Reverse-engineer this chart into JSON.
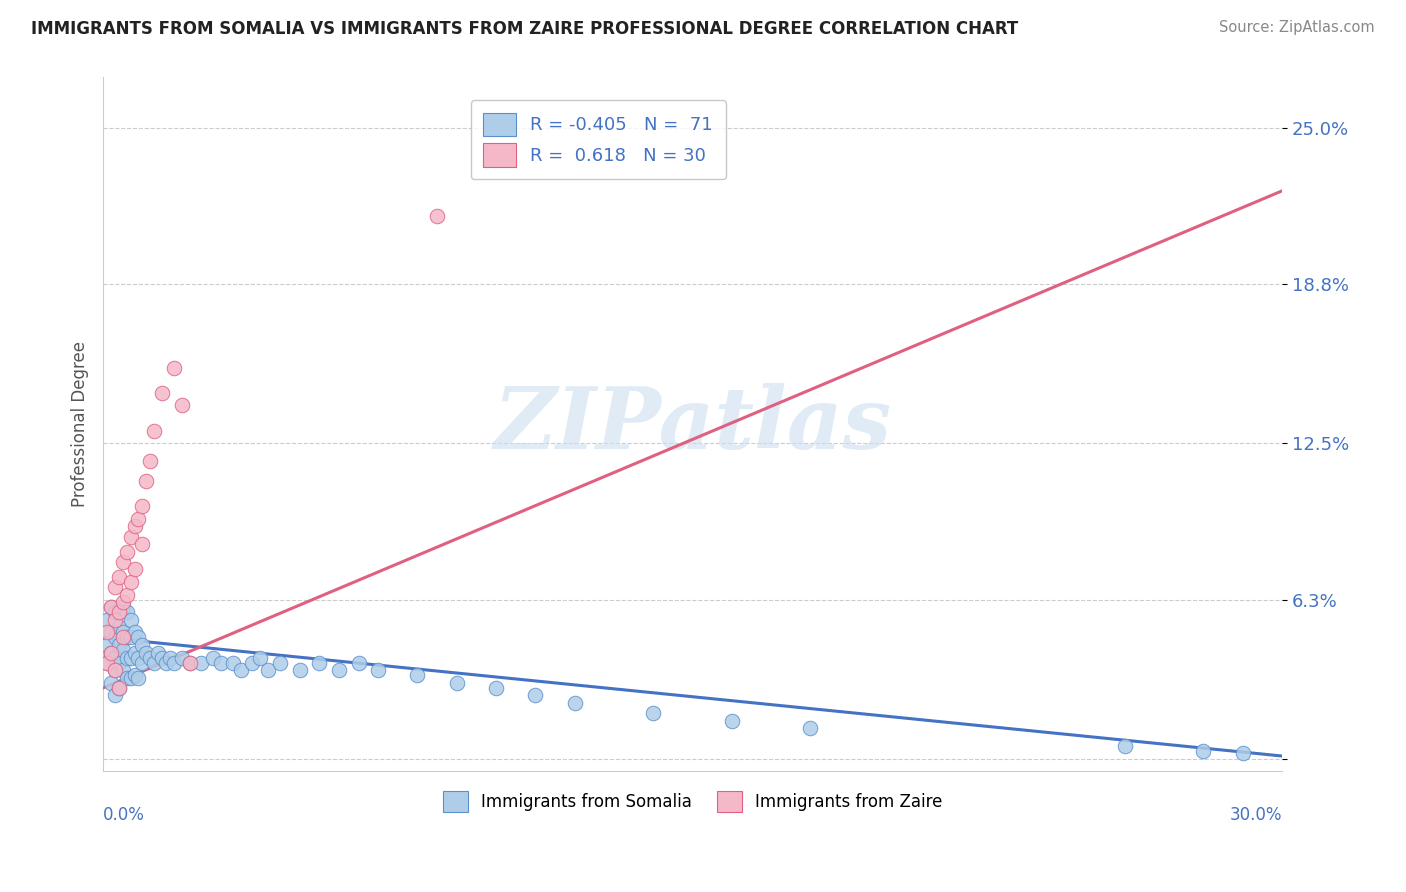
{
  "title": "IMMIGRANTS FROM SOMALIA VS IMMIGRANTS FROM ZAIRE PROFESSIONAL DEGREE CORRELATION CHART",
  "source": "Source: ZipAtlas.com",
  "ylabel": "Professional Degree",
  "watermark": "ZIPatlas",
  "xlim": [
    0.0,
    0.3
  ],
  "ylim": [
    -0.005,
    0.27
  ],
  "ytick_vals": [
    0.0,
    0.063,
    0.125,
    0.188,
    0.25
  ],
  "ytick_labels": [
    "",
    "6.3%",
    "12.5%",
    "18.8%",
    "25.0%"
  ],
  "somalia_color": "#aecde8",
  "somalia_edge": "#5b8fcc",
  "zaire_color": "#f5b8c8",
  "zaire_edge": "#e06080",
  "somalia_line_color": "#4472c4",
  "zaire_line_color": "#e06080",
  "somalia_trendline": [
    0.0,
    0.048,
    0.3,
    0.001
  ],
  "zaire_trendline": [
    0.0,
    0.028,
    0.3,
    0.225
  ],
  "somalia_x": [
    0.001,
    0.001,
    0.001,
    0.002,
    0.002,
    0.002,
    0.002,
    0.003,
    0.003,
    0.003,
    0.003,
    0.003,
    0.004,
    0.004,
    0.004,
    0.004,
    0.005,
    0.005,
    0.005,
    0.005,
    0.006,
    0.006,
    0.006,
    0.006,
    0.007,
    0.007,
    0.007,
    0.007,
    0.008,
    0.008,
    0.008,
    0.009,
    0.009,
    0.009,
    0.01,
    0.01,
    0.011,
    0.012,
    0.013,
    0.014,
    0.015,
    0.016,
    0.017,
    0.018,
    0.02,
    0.022,
    0.025,
    0.028,
    0.03,
    0.033,
    0.035,
    0.038,
    0.04,
    0.042,
    0.045,
    0.05,
    0.055,
    0.06,
    0.065,
    0.07,
    0.08,
    0.09,
    0.1,
    0.11,
    0.12,
    0.14,
    0.16,
    0.18,
    0.26,
    0.28,
    0.29
  ],
  "somalia_y": [
    0.055,
    0.045,
    0.038,
    0.06,
    0.05,
    0.042,
    0.03,
    0.058,
    0.048,
    0.04,
    0.035,
    0.025,
    0.052,
    0.045,
    0.038,
    0.028,
    0.06,
    0.05,
    0.043,
    0.035,
    0.058,
    0.048,
    0.04,
    0.032,
    0.055,
    0.048,
    0.04,
    0.032,
    0.05,
    0.042,
    0.033,
    0.048,
    0.04,
    0.032,
    0.045,
    0.038,
    0.042,
    0.04,
    0.038,
    0.042,
    0.04,
    0.038,
    0.04,
    0.038,
    0.04,
    0.038,
    0.038,
    0.04,
    0.038,
    0.038,
    0.035,
    0.038,
    0.04,
    0.035,
    0.038,
    0.035,
    0.038,
    0.035,
    0.038,
    0.035,
    0.033,
    0.03,
    0.028,
    0.025,
    0.022,
    0.018,
    0.015,
    0.012,
    0.005,
    0.003,
    0.002
  ],
  "zaire_x": [
    0.001,
    0.001,
    0.002,
    0.002,
    0.003,
    0.003,
    0.003,
    0.004,
    0.004,
    0.004,
    0.005,
    0.005,
    0.005,
    0.006,
    0.006,
    0.007,
    0.007,
    0.008,
    0.008,
    0.009,
    0.01,
    0.01,
    0.011,
    0.012,
    0.013,
    0.015,
    0.018,
    0.02,
    0.022,
    0.085
  ],
  "zaire_y": [
    0.05,
    0.038,
    0.06,
    0.042,
    0.068,
    0.055,
    0.035,
    0.072,
    0.058,
    0.028,
    0.078,
    0.062,
    0.048,
    0.082,
    0.065,
    0.088,
    0.07,
    0.092,
    0.075,
    0.095,
    0.1,
    0.085,
    0.11,
    0.118,
    0.13,
    0.145,
    0.155,
    0.14,
    0.038,
    0.215
  ],
  "legend_label1": "R = -0.405   N =  71",
  "legend_label2": "R =  0.618   N = 30",
  "bottom_legend": [
    "Immigrants from Somalia",
    "Immigrants from Zaire"
  ]
}
